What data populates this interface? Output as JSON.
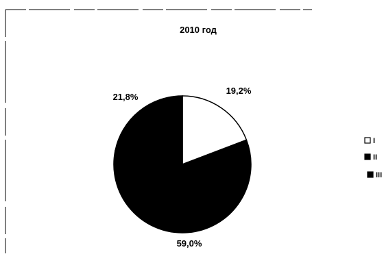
{
  "chart_data": {
    "type": "pie",
    "title": "2010 год",
    "slices": [
      {
        "label": "I",
        "value": 19.2,
        "value_label": "19,2%",
        "color": "#ffffff"
      },
      {
        "label": "II",
        "value": 59.0,
        "value_label": "59,0%",
        "color": "#000000"
      },
      {
        "label": "III",
        "value": 21.8,
        "value_label": "21,8%",
        "color": "#000000"
      }
    ],
    "legend": {
      "placement": "right",
      "entries": [
        "I",
        "II",
        "III"
      ]
    }
  }
}
